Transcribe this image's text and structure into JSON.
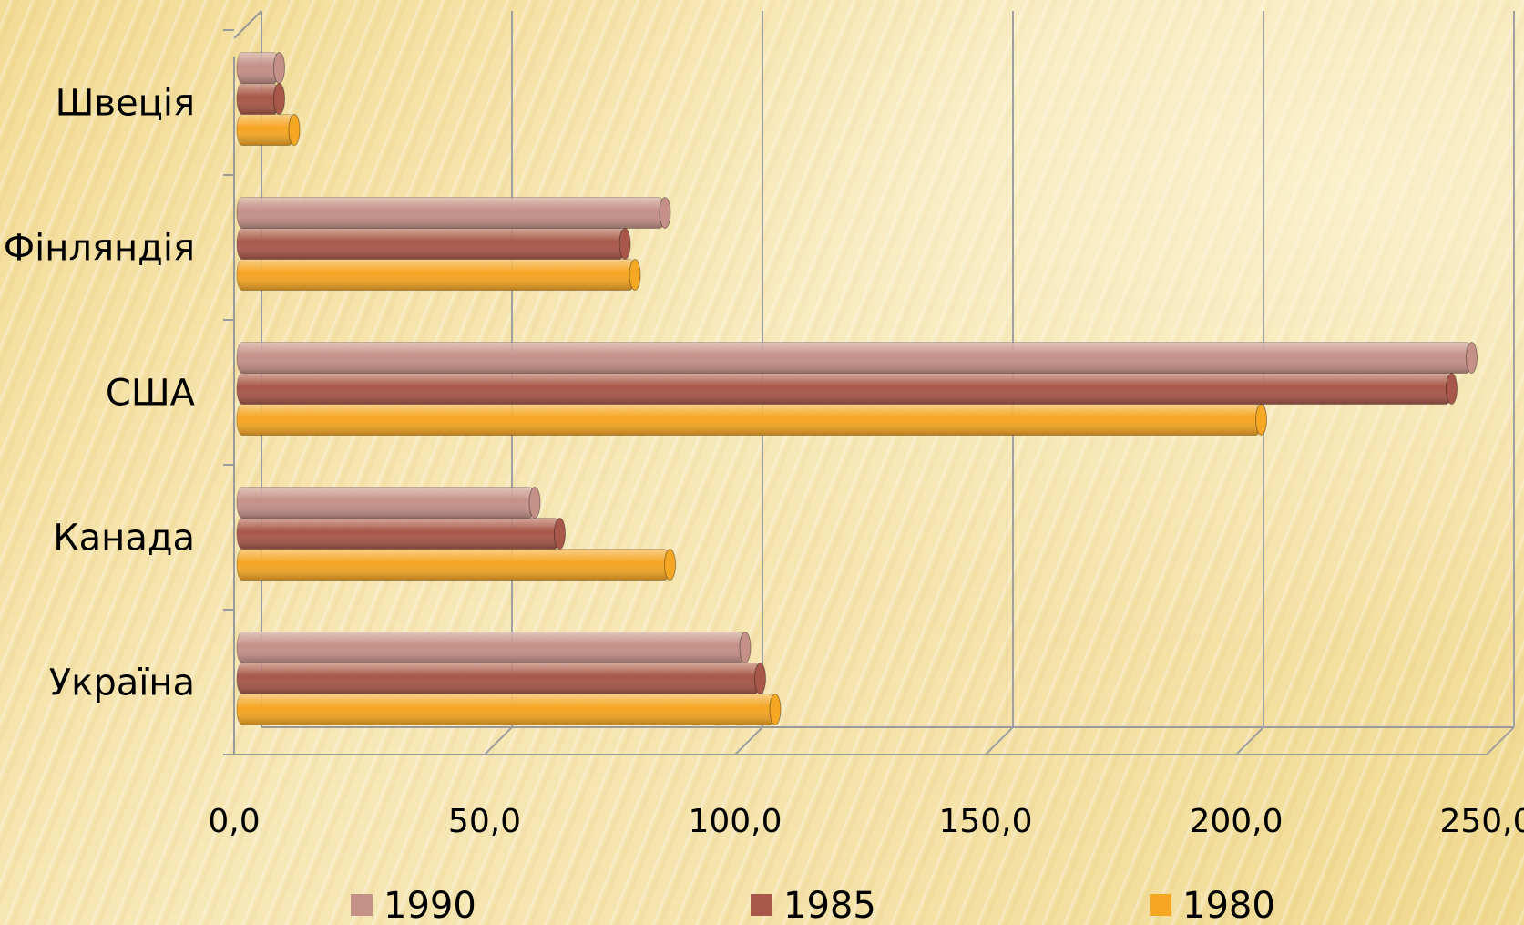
{
  "chart_data": {
    "type": "bar",
    "orientation": "horizontal",
    "categories": [
      "Україна",
      "Канада",
      "США",
      "Фінляндія",
      "Швеція"
    ],
    "series": [
      {
        "name": "1990",
        "values": [
          102,
          60,
          247,
          86,
          9
        ],
        "color": "#c49088"
      },
      {
        "name": "1985",
        "values": [
          105,
          65,
          243,
          78,
          9
        ],
        "color": "#a8584a"
      },
      {
        "name": "1980",
        "values": [
          108,
          87,
          205,
          80,
          12
        ],
        "color": "#f5a623"
      }
    ],
    "xticks": [
      "0,0",
      "50,0",
      "100,0",
      "150,0",
      "200,0",
      "250,0"
    ],
    "xlim": [
      0,
      250
    ],
    "title": "",
    "xlabel": "",
    "ylabel": "",
    "grid": true,
    "legend_position": "bottom"
  }
}
